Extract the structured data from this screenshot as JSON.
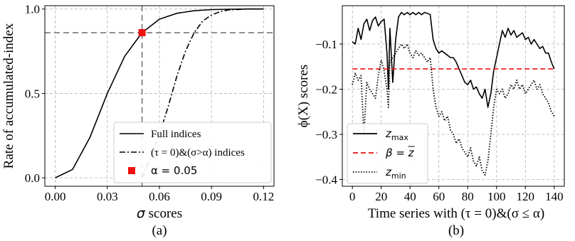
{
  "chart_data": [
    {
      "type": "line",
      "caption": "(a)",
      "xlabel_symbol": "σ",
      "xlabel_text": " scores",
      "ylabel": "Rate of accumulated-index",
      "xlim": [
        -0.006,
        0.126
      ],
      "ylim": [
        -0.05,
        1.02
      ],
      "xticks": [
        0.0,
        0.03,
        0.06,
        0.09,
        0.12
      ],
      "xtick_labels": [
        "0.00",
        "0.03",
        "0.06",
        "0.09",
        "0.12"
      ],
      "yticks": [
        0.0,
        0.5,
        1.0
      ],
      "ytick_labels": [
        "0.0",
        "0.5",
        "1.0"
      ],
      "grid": true,
      "legend_position": "lower-right",
      "series": [
        {
          "name": "Full indices",
          "style": "solid",
          "color": "#000000",
          "x": [
            0.0,
            0.01,
            0.02,
            0.03,
            0.04,
            0.05,
            0.06,
            0.07,
            0.08,
            0.09,
            0.1,
            0.11,
            0.12
          ],
          "y": [
            0.0,
            0.05,
            0.24,
            0.5,
            0.72,
            0.86,
            0.94,
            0.975,
            0.99,
            0.997,
            0.999,
            1.0,
            1.0
          ]
        },
        {
          "name": "(τ = 0)&(σ>α) indices",
          "style": "dashdot",
          "color": "#000000",
          "x": [
            0.05,
            0.055,
            0.06,
            0.065,
            0.07,
            0.075,
            0.08,
            0.085,
            0.09,
            0.095,
            0.1,
            0.11,
            0.12
          ],
          "y": [
            0.0,
            0.12,
            0.26,
            0.42,
            0.6,
            0.75,
            0.86,
            0.93,
            0.965,
            0.985,
            0.995,
            1.0,
            1.0
          ]
        }
      ],
      "marker": {
        "label": "α = 0.05",
        "x": 0.05,
        "y": 0.86,
        "color": "#ee1111"
      },
      "reference_lines": [
        {
          "orientation": "vertical",
          "value": 0.05,
          "color": "#808080"
        },
        {
          "orientation": "horizontal",
          "value": 0.86,
          "color": "#808080"
        }
      ]
    },
    {
      "type": "line",
      "caption": "(b)",
      "xlabel": "Time series with (τ = 0)&(σ ≤ α)",
      "ylabel": "ϕ(X) scores",
      "xlim": [
        -7,
        147
      ],
      "ylim": [
        -0.415,
        -0.015
      ],
      "xticks": [
        0,
        20,
        40,
        60,
        80,
        100,
        120,
        140
      ],
      "xtick_labels": [
        "0",
        "20",
        "40",
        "60",
        "80",
        "100",
        "120",
        "140"
      ],
      "yticks": [
        -0.1,
        -0.2,
        -0.3,
        -0.4
      ],
      "ytick_labels": [
        "−0.1",
        "−0.2",
        "−0.3",
        "−0.4"
      ],
      "grid": true,
      "legend_position": "lower-left",
      "series": [
        {
          "name": "z_max",
          "label_main": "z",
          "label_sub": "max",
          "style": "solid",
          "color": "#000000",
          "x": [
            0,
            2,
            4,
            6,
            8,
            10,
            12,
            14,
            16,
            18,
            20,
            22,
            24,
            25,
            26,
            28,
            30,
            32,
            34,
            36,
            38,
            40,
            42,
            44,
            46,
            48,
            50,
            52,
            54,
            56,
            58,
            60,
            62,
            64,
            66,
            68,
            70,
            72,
            74,
            76,
            78,
            80,
            82,
            84,
            86,
            88,
            90,
            92,
            94,
            96,
            98,
            100,
            102,
            104,
            106,
            108,
            110,
            112,
            114,
            116,
            118,
            120,
            122,
            124,
            126,
            128,
            130,
            132,
            134,
            136,
            138,
            140
          ],
          "y": [
            -0.095,
            -0.1,
            -0.065,
            -0.09,
            -0.055,
            -0.045,
            -0.07,
            -0.048,
            -0.04,
            -0.06,
            -0.05,
            -0.045,
            -0.12,
            -0.2,
            -0.065,
            -0.185,
            -0.09,
            -0.04,
            -0.03,
            -0.035,
            -0.03,
            -0.035,
            -0.03,
            -0.035,
            -0.03,
            -0.035,
            -0.03,
            -0.032,
            -0.035,
            -0.09,
            -0.11,
            -0.12,
            -0.115,
            -0.12,
            -0.125,
            -0.13,
            -0.13,
            -0.14,
            -0.155,
            -0.17,
            -0.185,
            -0.19,
            -0.18,
            -0.2,
            -0.195,
            -0.21,
            -0.22,
            -0.2,
            -0.24,
            -0.21,
            -0.16,
            -0.13,
            -0.1,
            -0.07,
            -0.085,
            -0.065,
            -0.08,
            -0.07,
            -0.085,
            -0.08,
            -0.075,
            -0.09,
            -0.085,
            -0.1,
            -0.09,
            -0.1,
            -0.11,
            -0.105,
            -0.12,
            -0.12,
            -0.14,
            -0.155
          ]
        },
        {
          "name": "β = z̄",
          "label_main": "β = z",
          "style": "dashed",
          "color": "#ee1111",
          "x": [
            0,
            140
          ],
          "y": [
            -0.155,
            -0.155
          ]
        },
        {
          "name": "z_min",
          "label_main": "z",
          "label_sub": "min",
          "style": "dotted",
          "color": "#000000",
          "x": [
            0,
            2,
            4,
            6,
            8,
            10,
            12,
            14,
            16,
            18,
            20,
            22,
            24,
            25,
            26,
            28,
            30,
            32,
            34,
            36,
            38,
            40,
            42,
            44,
            46,
            48,
            50,
            52,
            54,
            56,
            58,
            60,
            62,
            64,
            66,
            68,
            70,
            72,
            74,
            76,
            78,
            80,
            82,
            84,
            86,
            88,
            90,
            92,
            94,
            96,
            98,
            100,
            102,
            104,
            106,
            108,
            110,
            112,
            114,
            116,
            118,
            120,
            122,
            124,
            126,
            128,
            130,
            132,
            134,
            136,
            138,
            140
          ],
          "y": [
            -0.19,
            -0.165,
            -0.18,
            -0.17,
            -0.3,
            -0.185,
            -0.2,
            -0.21,
            -0.22,
            -0.17,
            -0.135,
            -0.16,
            -0.2,
            -0.24,
            -0.14,
            -0.13,
            -0.12,
            -0.11,
            -0.1,
            -0.11,
            -0.1,
            -0.12,
            -0.13,
            -0.115,
            -0.125,
            -0.12,
            -0.13,
            -0.14,
            -0.13,
            -0.2,
            -0.24,
            -0.26,
            -0.25,
            -0.27,
            -0.26,
            -0.29,
            -0.3,
            -0.32,
            -0.31,
            -0.33,
            -0.34,
            -0.35,
            -0.33,
            -0.36,
            -0.37,
            -0.35,
            -0.38,
            -0.39,
            -0.36,
            -0.3,
            -0.24,
            -0.2,
            -0.21,
            -0.2,
            -0.22,
            -0.21,
            -0.19,
            -0.2,
            -0.18,
            -0.2,
            -0.19,
            -0.21,
            -0.2,
            -0.19,
            -0.18,
            -0.2,
            -0.19,
            -0.21,
            -0.22,
            -0.23,
            -0.25,
            -0.26
          ]
        }
      ]
    }
  ]
}
